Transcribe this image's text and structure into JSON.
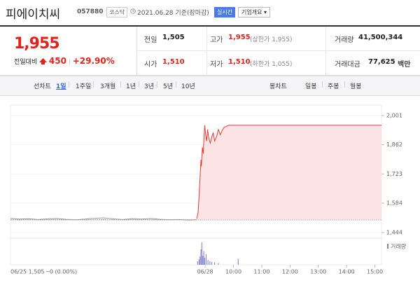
{
  "header": {
    "name": "피에이치씨",
    "code": "057880",
    "market": "코스닥",
    "date": "2021.06.28 기준(장마감)",
    "realtime": "실시간",
    "company_info": "기업개요"
  },
  "quote": {
    "price": "1,955",
    "change_label": "전일대비",
    "change": "450",
    "change_rate": "+29.90%",
    "rows": [
      [
        {
          "label": "전일",
          "value": "1,505"
        },
        {
          "label": "고가",
          "value": "1,955",
          "note": "(상한가 1,955)"
        },
        {
          "label": "거래량",
          "value": "41,500,344"
        }
      ],
      [
        {
          "label": "시가",
          "value": "1,510"
        },
        {
          "label": "저가",
          "value": "1,510",
          "note": "(하한가 1,055)"
        },
        {
          "label": "거래대금",
          "value": "77,625",
          "unit": "백만"
        }
      ]
    ]
  },
  "tabs": {
    "line_chart": "선차트",
    "periods": [
      "1일",
      "1주일",
      "3개월",
      "1년",
      "3년",
      "5년",
      "10년"
    ],
    "selected": 0,
    "candle_chart": "봉차트",
    "candle_periods": [
      "일봉",
      "주봉",
      "월봉"
    ]
  },
  "chart_data": {
    "type": "line",
    "xlim": [
      -413,
      374
    ],
    "ylim": [
      1424,
      2051
    ],
    "yticks": [
      {
        "value": 2001,
        "label": "2,001"
      },
      {
        "value": 1862,
        "label": "1,862"
      },
      {
        "value": 1723,
        "label": "1,723"
      },
      {
        "value": 1584,
        "label": "1,584"
      },
      {
        "value": 1444,
        "label": "1,444"
      }
    ],
    "xticks": [
      {
        "value": 0,
        "label": "06/28"
      },
      {
        "value": 60,
        "label": "10:00"
      },
      {
        "value": 120,
        "label": "11:00"
      },
      {
        "value": 180,
        "label": "12:00"
      },
      {
        "value": 240,
        "label": "13:00"
      },
      {
        "value": 300,
        "label": "14:00"
      },
      {
        "value": 360,
        "label": "15:00"
      }
    ],
    "baseline": 1505,
    "series": [
      {
        "color": "#9a9a9a",
        "x": [
          -413,
          -395,
          -375,
          -355,
          -335,
          -315,
          -295,
          -275,
          -255,
          -235,
          -215,
          -195,
          -175,
          -155,
          -135,
          -115,
          -95,
          -75,
          -55,
          -35,
          -20
        ],
        "values": [
          1512,
          1508,
          1510,
          1506,
          1509,
          1511,
          1507,
          1505,
          1508,
          1512,
          1514,
          1509,
          1506,
          1510,
          1508,
          1511,
          1507,
          1505,
          1506,
          1503,
          1505
        ]
      },
      {
        "color": "#e53935",
        "fill": "#fde4e4",
        "x": [
          -18,
          -15,
          -13,
          -11,
          -9,
          -8,
          -6,
          -4,
          -3,
          -1,
          1,
          3,
          5,
          8,
          11,
          14,
          17,
          20,
          24,
          28,
          32,
          36,
          40,
          45,
          50,
          374
        ],
        "values": [
          1510,
          1540,
          1620,
          1700,
          1790,
          1760,
          1850,
          1820,
          1880,
          1955,
          1910,
          1880,
          1935,
          1890,
          1870,
          1900,
          1920,
          1880,
          1900,
          1935,
          1910,
          1930,
          1945,
          1950,
          1955,
          1955
        ]
      }
    ],
    "volume": {
      "label": "거래량",
      "color": "#8e8ed8",
      "ylim": [
        0,
        4000000
      ],
      "x": [
        -16,
        -13,
        -11,
        -9,
        -7,
        -5,
        -3,
        -1,
        2,
        6,
        10,
        14,
        20,
        28,
        70
      ],
      "values": [
        600000,
        900000,
        1400000,
        2600000,
        3800000,
        1500000,
        2300000,
        1200000,
        1800000,
        800000,
        600000,
        500000,
        400000,
        300000,
        1000000
      ]
    },
    "caption": "06/25 1,505 ─0 (0.00%)"
  }
}
